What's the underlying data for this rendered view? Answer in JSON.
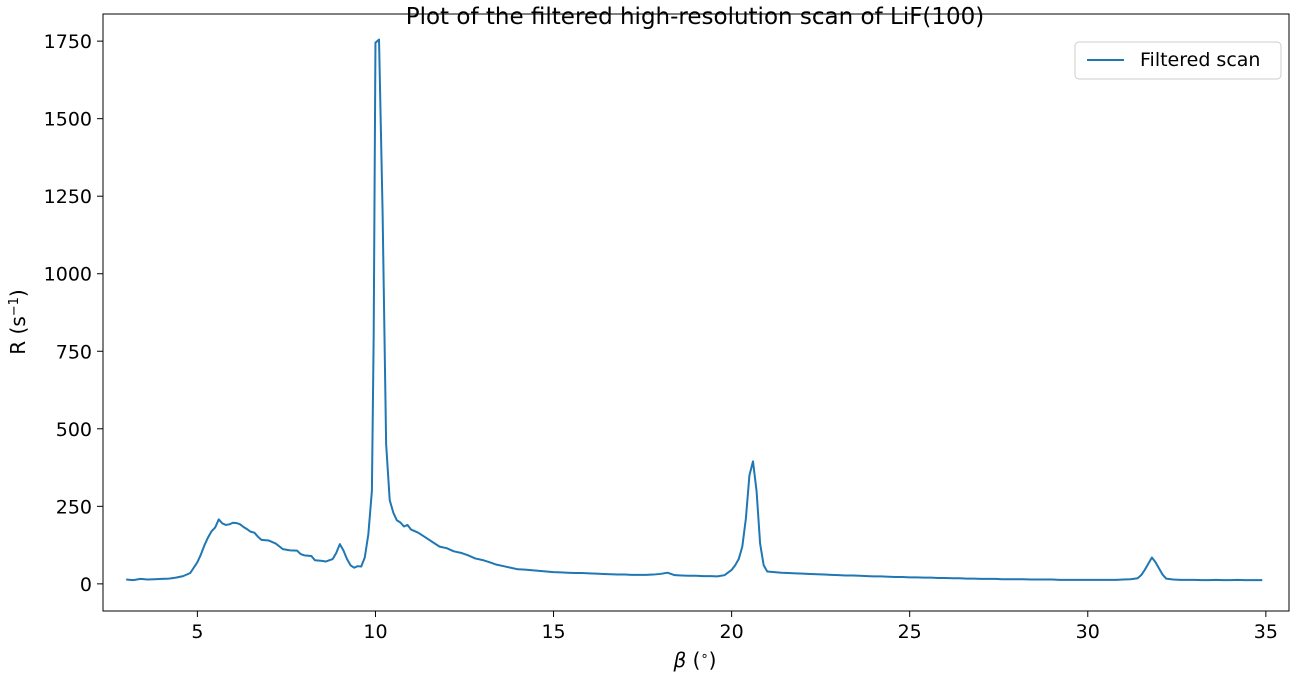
{
  "chart_data": {
    "type": "line",
    "title": "Plot of the filtered high-resolution scan of LiF(100)",
    "xlabel": {
      "symbol": "β",
      "unit_open": " (",
      "unit_sup": "∘",
      "unit_close": ")"
    },
    "ylabel": {
      "base": "R (s",
      "sup": "−1",
      "close": ")"
    },
    "xlim": [
      2.35,
      35.65
    ],
    "ylim": [
      -87.5,
      1837.5
    ],
    "xticks": [
      5,
      10,
      15,
      20,
      25,
      30,
      35
    ],
    "yticks": [
      0,
      250,
      500,
      750,
      1000,
      1250,
      1500,
      1750
    ],
    "grid": false,
    "legend": {
      "position": "upper-right",
      "entries": [
        "Filtered scan"
      ]
    },
    "series": [
      {
        "name": "Filtered scan",
        "color": "#1f77b4",
        "points": [
          [
            3.0,
            14
          ],
          [
            3.2,
            12
          ],
          [
            3.4,
            16
          ],
          [
            3.6,
            14
          ],
          [
            3.8,
            15
          ],
          [
            4.0,
            16
          ],
          [
            4.2,
            17
          ],
          [
            4.4,
            20
          ],
          [
            4.6,
            25
          ],
          [
            4.8,
            35
          ],
          [
            5.0,
            70
          ],
          [
            5.1,
            95
          ],
          [
            5.2,
            125
          ],
          [
            5.3,
            150
          ],
          [
            5.4,
            170
          ],
          [
            5.5,
            182
          ],
          [
            5.6,
            208
          ],
          [
            5.7,
            195
          ],
          [
            5.8,
            190
          ],
          [
            5.9,
            192
          ],
          [
            6.0,
            197
          ],
          [
            6.1,
            196
          ],
          [
            6.2,
            192
          ],
          [
            6.3,
            183
          ],
          [
            6.4,
            176
          ],
          [
            6.5,
            168
          ],
          [
            6.6,
            165
          ],
          [
            6.7,
            152
          ],
          [
            6.8,
            142
          ],
          [
            7.0,
            140
          ],
          [
            7.2,
            130
          ],
          [
            7.4,
            112
          ],
          [
            7.6,
            108
          ],
          [
            7.8,
            107
          ],
          [
            7.9,
            96
          ],
          [
            8.0,
            92
          ],
          [
            8.2,
            90
          ],
          [
            8.3,
            76
          ],
          [
            8.5,
            74
          ],
          [
            8.6,
            72
          ],
          [
            8.8,
            80
          ],
          [
            8.9,
            100
          ],
          [
            9.0,
            128
          ],
          [
            9.1,
            108
          ],
          [
            9.2,
            80
          ],
          [
            9.3,
            60
          ],
          [
            9.4,
            52
          ],
          [
            9.5,
            57
          ],
          [
            9.6,
            56
          ],
          [
            9.7,
            85
          ],
          [
            9.8,
            160
          ],
          [
            9.9,
            300
          ],
          [
            9.95,
            800
          ],
          [
            10.0,
            1745
          ],
          [
            10.1,
            1755
          ],
          [
            10.2,
            1200
          ],
          [
            10.3,
            450
          ],
          [
            10.4,
            270
          ],
          [
            10.5,
            230
          ],
          [
            10.6,
            205
          ],
          [
            10.7,
            198
          ],
          [
            10.8,
            185
          ],
          [
            10.9,
            190
          ],
          [
            11.0,
            175
          ],
          [
            11.2,
            165
          ],
          [
            11.4,
            150
          ],
          [
            11.6,
            135
          ],
          [
            11.8,
            120
          ],
          [
            12.0,
            115
          ],
          [
            12.2,
            105
          ],
          [
            12.4,
            100
          ],
          [
            12.6,
            92
          ],
          [
            12.8,
            82
          ],
          [
            13.0,
            77
          ],
          [
            13.2,
            70
          ],
          [
            13.4,
            62
          ],
          [
            13.6,
            57
          ],
          [
            13.8,
            52
          ],
          [
            14.0,
            47
          ],
          [
            14.2,
            46
          ],
          [
            14.4,
            44
          ],
          [
            14.6,
            42
          ],
          [
            14.8,
            40
          ],
          [
            15.0,
            38
          ],
          [
            15.2,
            37
          ],
          [
            15.4,
            36
          ],
          [
            15.6,
            35
          ],
          [
            15.8,
            35
          ],
          [
            16.0,
            34
          ],
          [
            16.2,
            33
          ],
          [
            16.4,
            32
          ],
          [
            16.6,
            31
          ],
          [
            16.8,
            30
          ],
          [
            17.0,
            30
          ],
          [
            17.2,
            29
          ],
          [
            17.4,
            29
          ],
          [
            17.6,
            29
          ],
          [
            17.8,
            30
          ],
          [
            18.0,
            32
          ],
          [
            18.2,
            36
          ],
          [
            18.4,
            28
          ],
          [
            18.6,
            27
          ],
          [
            18.8,
            26
          ],
          [
            19.0,
            26
          ],
          [
            19.2,
            25
          ],
          [
            19.4,
            25
          ],
          [
            19.6,
            24
          ],
          [
            19.8,
            28
          ],
          [
            20.0,
            45
          ],
          [
            20.1,
            60
          ],
          [
            20.2,
            80
          ],
          [
            20.3,
            120
          ],
          [
            20.4,
            210
          ],
          [
            20.5,
            350
          ],
          [
            20.6,
            395
          ],
          [
            20.7,
            300
          ],
          [
            20.8,
            130
          ],
          [
            20.9,
            60
          ],
          [
            21.0,
            40
          ],
          [
            21.2,
            38
          ],
          [
            21.4,
            36
          ],
          [
            21.6,
            35
          ],
          [
            21.8,
            34
          ],
          [
            22.0,
            33
          ],
          [
            22.2,
            32
          ],
          [
            22.4,
            31
          ],
          [
            22.6,
            30
          ],
          [
            22.8,
            29
          ],
          [
            23.0,
            28
          ],
          [
            23.2,
            27
          ],
          [
            23.4,
            27
          ],
          [
            23.6,
            26
          ],
          [
            23.8,
            25
          ],
          [
            24.0,
            24
          ],
          [
            24.2,
            24
          ],
          [
            24.4,
            23
          ],
          [
            24.6,
            22
          ],
          [
            24.8,
            22
          ],
          [
            25.0,
            21
          ],
          [
            25.2,
            21
          ],
          [
            25.4,
            20
          ],
          [
            25.6,
            20
          ],
          [
            25.8,
            19
          ],
          [
            26.0,
            19
          ],
          [
            26.2,
            18
          ],
          [
            26.4,
            18
          ],
          [
            26.6,
            17
          ],
          [
            26.8,
            17
          ],
          [
            27.0,
            16
          ],
          [
            27.2,
            16
          ],
          [
            27.4,
            16
          ],
          [
            27.6,
            15
          ],
          [
            27.8,
            15
          ],
          [
            28.0,
            15
          ],
          [
            28.2,
            15
          ],
          [
            28.4,
            14
          ],
          [
            28.6,
            14
          ],
          [
            28.8,
            14
          ],
          [
            29.0,
            14
          ],
          [
            29.2,
            13
          ],
          [
            29.4,
            13
          ],
          [
            29.6,
            13
          ],
          [
            29.8,
            13
          ],
          [
            30.0,
            13
          ],
          [
            30.2,
            13
          ],
          [
            30.4,
            13
          ],
          [
            30.6,
            13
          ],
          [
            30.8,
            13
          ],
          [
            31.0,
            14
          ],
          [
            31.2,
            15
          ],
          [
            31.4,
            18
          ],
          [
            31.5,
            28
          ],
          [
            31.6,
            45
          ],
          [
            31.7,
            65
          ],
          [
            31.8,
            85
          ],
          [
            31.9,
            70
          ],
          [
            32.0,
            50
          ],
          [
            32.1,
            30
          ],
          [
            32.2,
            17
          ],
          [
            32.4,
            14
          ],
          [
            32.6,
            13
          ],
          [
            32.8,
            13
          ],
          [
            33.0,
            13
          ],
          [
            33.2,
            12
          ],
          [
            33.4,
            12
          ],
          [
            33.6,
            13
          ],
          [
            33.8,
            12
          ],
          [
            34.0,
            12
          ],
          [
            34.2,
            13
          ],
          [
            34.4,
            12
          ],
          [
            34.6,
            12
          ],
          [
            34.8,
            12
          ],
          [
            34.9,
            12
          ]
        ]
      }
    ]
  }
}
